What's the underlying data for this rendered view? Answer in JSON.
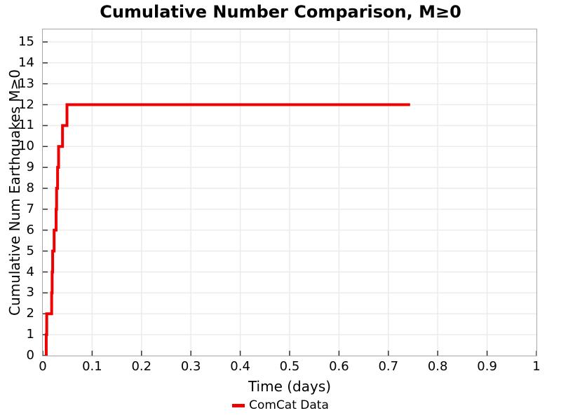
{
  "figure": {
    "background_color": "#ffffff",
    "text_color": "#000000"
  },
  "chart_data": {
    "type": "line",
    "subtype": "cumulative-step",
    "title": "Cumulative Number Comparison, M≥0",
    "xlabel": "Time (days)",
    "ylabel": "Cumulative Num Earthquakes M≥0",
    "xlim": [
      0,
      1
    ],
    "ylim": [
      0,
      15.6
    ],
    "grid": true,
    "grid_color": "#ececec",
    "axis_border_color": "#a6a6a6",
    "tick_mark_color": "#333333",
    "tick_direction": "in",
    "xticks": {
      "values": [
        0,
        0.1,
        0.2,
        0.3,
        0.4,
        0.5,
        0.6,
        0.7,
        0.8,
        0.9,
        1
      ],
      "labels": [
        "0",
        "0.1",
        "0.2",
        "0.3",
        "0.4",
        "0.5",
        "0.6",
        "0.7",
        "0.8",
        "0.9",
        "1"
      ]
    },
    "yticks": {
      "values": [
        0,
        1,
        2,
        3,
        4,
        5,
        6,
        7,
        8,
        9,
        10,
        11,
        12,
        13,
        14,
        15
      ],
      "labels": [
        "0",
        "1",
        "2",
        "3",
        "4",
        "5",
        "6",
        "7",
        "8",
        "9",
        "10",
        "11",
        "12",
        "13",
        "14",
        "15"
      ]
    },
    "legend": {
      "position": "bottom-center",
      "entries": [
        {
          "label": "ComCat Data",
          "color": "#ee0000"
        }
      ]
    },
    "series": [
      {
        "name": "ComCat Data",
        "color": "#ee0000",
        "line_width": 4,
        "events_time_vs_cumulative_count": [
          [
            0.007,
            1
          ],
          [
            0.008,
            2
          ],
          [
            0.018,
            3
          ],
          [
            0.019,
            4
          ],
          [
            0.02,
            5
          ],
          [
            0.023,
            6
          ],
          [
            0.027,
            7
          ],
          [
            0.028,
            8
          ],
          [
            0.03,
            9
          ],
          [
            0.032,
            10
          ],
          [
            0.04,
            11
          ],
          [
            0.049,
            12
          ]
        ],
        "final_count": 12,
        "end_time": 0.744
      }
    ]
  }
}
